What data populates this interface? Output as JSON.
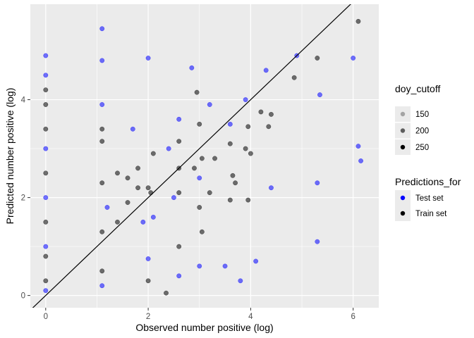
{
  "chart_data": {
    "type": "scatter",
    "title": "",
    "xlabel": "Observed number positive (log)",
    "ylabel": "Predicted number positive (log)",
    "xlim": [
      -0.3,
      6.5
    ],
    "ylim": [
      -0.25,
      5.95
    ],
    "x_ticks": [
      0,
      2,
      4,
      6
    ],
    "y_ticks": [
      0,
      2,
      4
    ],
    "grid": true,
    "reference_line": {
      "slope": 1,
      "intercept": 0,
      "color": "#000000"
    },
    "legend_position": "right",
    "legends": [
      {
        "title": "doy_cutoff",
        "entries": [
          {
            "label": "150",
            "alpha": 0.3
          },
          {
            "label": "200",
            "alpha": 0.6
          },
          {
            "label": "250",
            "alpha": 1.0
          }
        ]
      },
      {
        "title": "Predictions_for",
        "entries": [
          {
            "label": "Test set",
            "color": "#0000ff"
          },
          {
            "label": "Train set",
            "color": "#000000"
          }
        ]
      }
    ],
    "series": [
      {
        "name": "Train set",
        "color": "#000000",
        "points": [
          [
            0.0,
            0.3
          ],
          [
            0.0,
            0.8
          ],
          [
            0.0,
            1.5
          ],
          [
            0.0,
            2.5
          ],
          [
            0.0,
            3.4
          ],
          [
            0.0,
            3.9
          ],
          [
            0.0,
            4.2
          ],
          [
            1.1,
            0.5
          ],
          [
            1.1,
            1.3
          ],
          [
            1.1,
            2.3
          ],
          [
            1.1,
            3.15
          ],
          [
            1.1,
            3.4
          ],
          [
            1.4,
            1.5
          ],
          [
            1.4,
            2.5
          ],
          [
            1.6,
            1.9
          ],
          [
            1.6,
            2.4
          ],
          [
            1.8,
            2.2
          ],
          [
            1.8,
            2.6
          ],
          [
            2.0,
            0.3
          ],
          [
            2.0,
            2.2
          ],
          [
            2.05,
            2.1
          ],
          [
            2.1,
            2.9
          ],
          [
            2.35,
            0.05
          ],
          [
            2.6,
            1.0
          ],
          [
            2.6,
            2.1
          ],
          [
            2.6,
            2.6
          ],
          [
            2.6,
            3.15
          ],
          [
            2.9,
            2.6
          ],
          [
            2.95,
            4.15
          ],
          [
            3.0,
            1.8
          ],
          [
            3.0,
            3.5
          ],
          [
            3.05,
            1.3
          ],
          [
            3.05,
            2.8
          ],
          [
            3.2,
            2.1
          ],
          [
            3.3,
            2.8
          ],
          [
            3.6,
            1.95
          ],
          [
            3.6,
            3.1
          ],
          [
            3.65,
            2.45
          ],
          [
            3.7,
            2.3
          ],
          [
            3.9,
            3.0
          ],
          [
            3.95,
            1.95
          ],
          [
            3.95,
            3.45
          ],
          [
            4.0,
            2.9
          ],
          [
            4.2,
            3.75
          ],
          [
            4.35,
            3.45
          ],
          [
            4.4,
            3.7
          ],
          [
            4.85,
            4.45
          ],
          [
            5.3,
            4.85
          ],
          [
            6.1,
            5.6
          ]
        ]
      },
      {
        "name": "Test set",
        "color": "#0000ff",
        "points": [
          [
            0.0,
            0.1
          ],
          [
            0.0,
            1.0
          ],
          [
            0.0,
            2.0
          ],
          [
            0.0,
            3.0
          ],
          [
            0.0,
            4.5
          ],
          [
            0.0,
            4.9
          ],
          [
            1.1,
            5.45
          ],
          [
            1.1,
            4.8
          ],
          [
            1.1,
            3.9
          ],
          [
            1.1,
            0.2
          ],
          [
            1.2,
            1.8
          ],
          [
            1.7,
            3.4
          ],
          [
            1.9,
            1.5
          ],
          [
            2.0,
            4.85
          ],
          [
            2.0,
            0.75
          ],
          [
            2.1,
            1.6
          ],
          [
            2.4,
            3.0
          ],
          [
            2.5,
            2.0
          ],
          [
            2.6,
            3.6
          ],
          [
            2.6,
            0.4
          ],
          [
            2.85,
            4.65
          ],
          [
            3.0,
            2.4
          ],
          [
            3.0,
            0.6
          ],
          [
            3.2,
            3.9
          ],
          [
            3.5,
            0.6
          ],
          [
            3.6,
            3.5
          ],
          [
            3.8,
            0.3
          ],
          [
            3.9,
            4.0
          ],
          [
            4.1,
            0.7
          ],
          [
            4.3,
            4.6
          ],
          [
            4.4,
            2.2
          ],
          [
            4.9,
            4.9
          ],
          [
            5.3,
            2.3
          ],
          [
            5.35,
            4.1
          ],
          [
            5.3,
            1.1
          ],
          [
            6.0,
            4.85
          ],
          [
            6.1,
            3.05
          ],
          [
            6.15,
            2.75
          ]
        ]
      }
    ]
  }
}
